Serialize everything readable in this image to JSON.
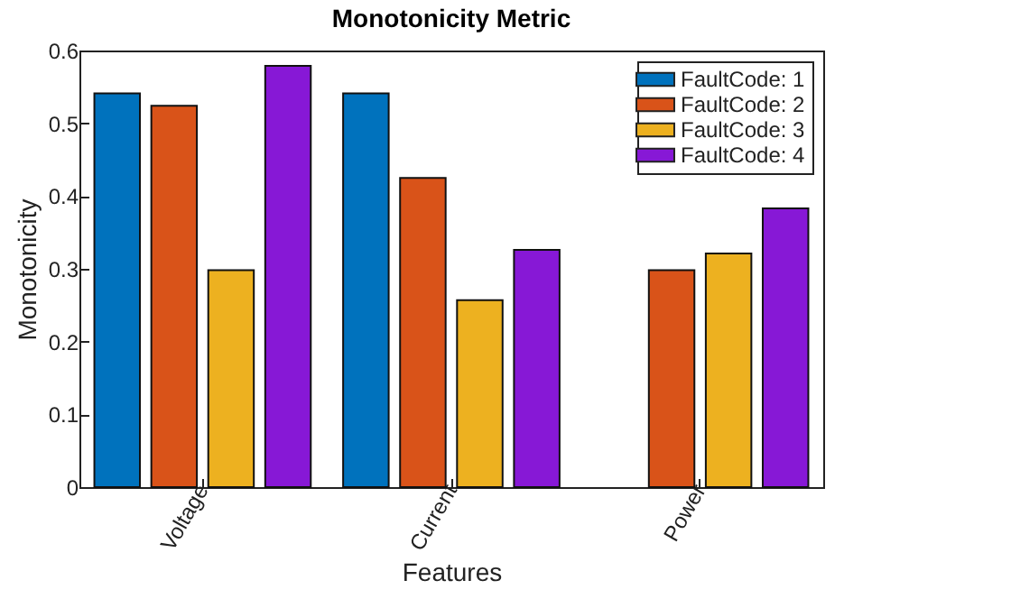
{
  "chart_data": {
    "type": "bar",
    "title": "Monotonicity Metric",
    "xlabel": "Features",
    "ylabel": "Monotonicity",
    "categories": [
      "Voltage",
      "Current",
      "Power"
    ],
    "series": [
      {
        "name": "FaultCode: 1",
        "color": "#0072bd",
        "values": [
          0.541,
          0.541,
          null
        ]
      },
      {
        "name": "FaultCode: 2",
        "color": "#d95319",
        "values": [
          0.524,
          0.425,
          0.298
        ]
      },
      {
        "name": "FaultCode: 3",
        "color": "#edb120",
        "values": [
          0.298,
          0.257,
          0.321
        ]
      },
      {
        "name": "FaultCode: 4",
        "color": "#8718d6",
        "values": [
          0.579,
          0.326,
          0.383
        ]
      }
    ],
    "ylim": [
      0,
      0.6
    ],
    "yticks": [
      0,
      0.1,
      0.2,
      0.3,
      0.4,
      0.5,
      0.6
    ],
    "legend": "top right"
  }
}
